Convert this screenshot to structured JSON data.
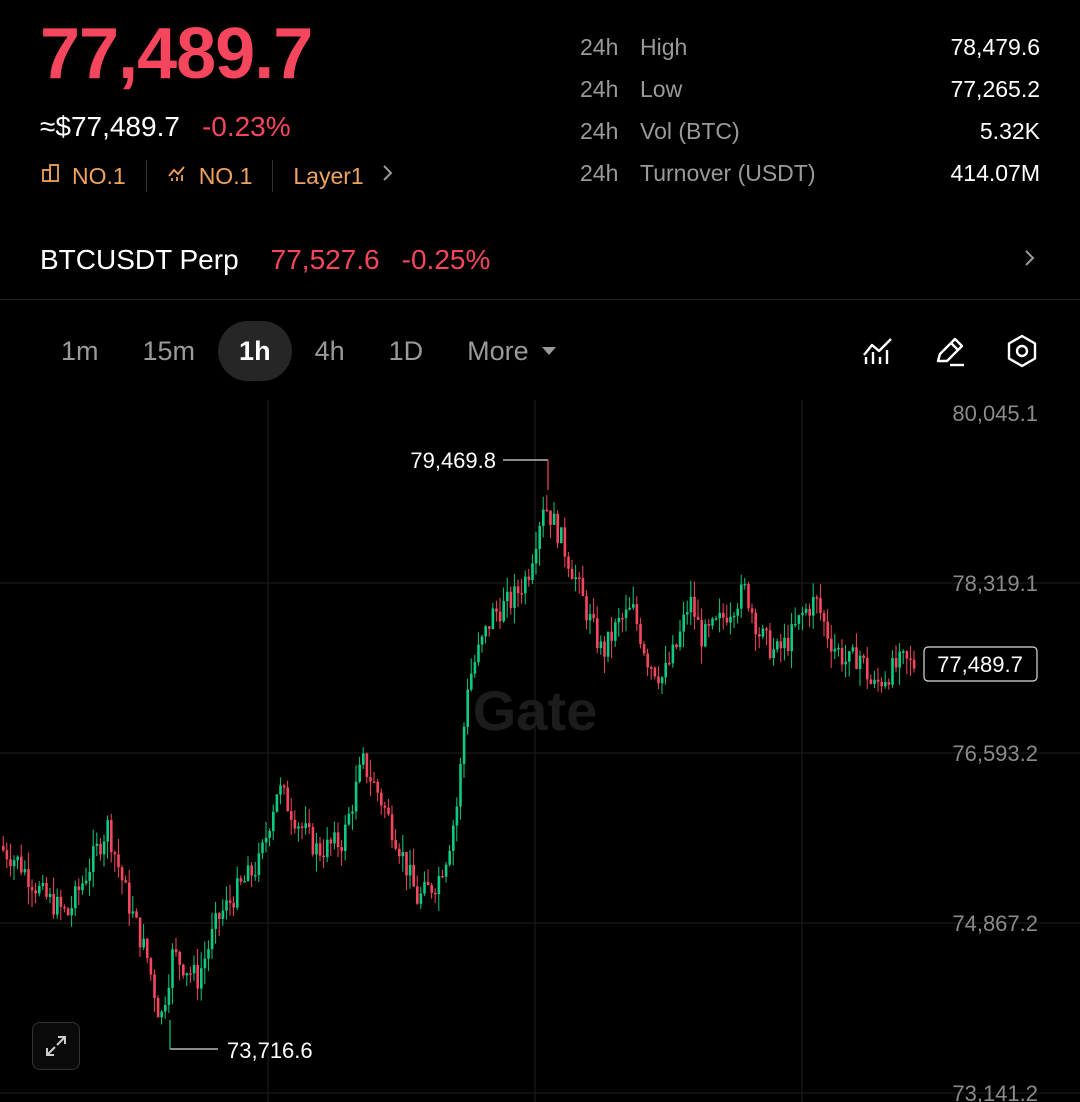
{
  "ticker": {
    "last_price": "77,489.7",
    "usd_price": "≈$77,489.7",
    "change_pct": "-0.23%",
    "tags": [
      {
        "icon": "building-icon",
        "label": "NO.1"
      },
      {
        "icon": "trend-icon",
        "label": "NO.1"
      },
      {
        "icon": "",
        "label": "Layer1"
      }
    ]
  },
  "stats": [
    {
      "period": "24h",
      "label": "High",
      "value": "78,479.6"
    },
    {
      "period": "24h",
      "label": "Low",
      "value": "77,265.2"
    },
    {
      "period": "24h",
      "label": "Vol (BTC)",
      "value": "5.32K"
    },
    {
      "period": "24h",
      "label": "Turnover (USDT)",
      "value": "414.07M"
    }
  ],
  "perp": {
    "name": "BTCUSDT Perp",
    "price": "77,527.6",
    "change": "-0.25%"
  },
  "timeframes": {
    "items": [
      "1m",
      "15m",
      "1h",
      "4h",
      "1D"
    ],
    "active": "1h",
    "more_label": "More"
  },
  "toolbar_icons": [
    "indicator-icon",
    "draw-pen-icon",
    "settings-icon"
  ],
  "chart_data": {
    "type": "candlestick",
    "y_axis_ticks": [
      "80,045.1",
      "78,319.1",
      "76,593.2",
      "74,867.2",
      "73,141.2"
    ],
    "y_axis_values": [
      80045.1,
      78319.1,
      76593.2,
      74867.2,
      73141.2
    ],
    "high_marker": "79,469.8",
    "low_marker": "73,716.6",
    "current_price_label": "77,489.7",
    "watermark": "Gate",
    "colors": {
      "up": "#0ecb81",
      "down": "#f6465d",
      "grid": "#1f1f1f",
      "axis_text": "#8a8a8a"
    }
  }
}
